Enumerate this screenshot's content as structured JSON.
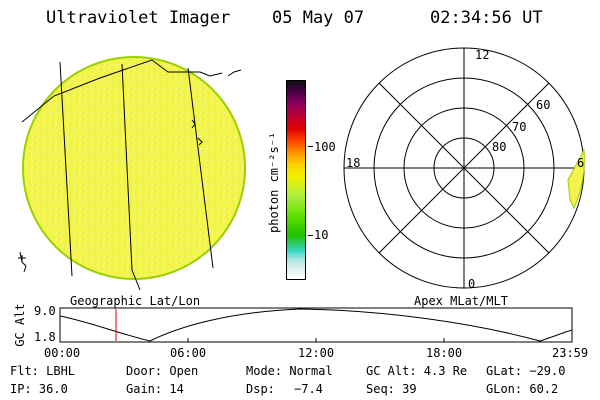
{
  "header": {
    "title": "Ultraviolet Imager",
    "date": "05 May 07",
    "time": "02:34:56 UT"
  },
  "colorbar": {
    "unit_label": "photon cm⁻²s⁻¹",
    "ticks": [
      "100",
      "10"
    ],
    "colors": [
      "#ffffff",
      "#d9f0ee",
      "#a8e6e0",
      "#3ad6c8",
      "#20c000",
      "#60e000",
      "#b0f040",
      "#f0f000",
      "#ffd000",
      "#ff9000",
      "#ff4000",
      "#e00000",
      "#b00040",
      "#800060",
      "#400040",
      "#101010"
    ]
  },
  "geo_panel": {
    "caption": "Geographic Lat/Lon",
    "fill_color": "#f2f44a"
  },
  "polar_panel": {
    "caption": "Apex MLat/MLT",
    "lat_labels": [
      "80",
      "70",
      "60"
    ],
    "mlt_labels": {
      "top": "12",
      "left": "18",
      "right": "6",
      "bottom": "0"
    }
  },
  "altitude_plot": {
    "ylabel": "GC Alt",
    "yticks": [
      "9.0",
      "1.8"
    ],
    "xticks": [
      "00:00",
      "06:00",
      "12:00",
      "18:00",
      "23:59"
    ],
    "marker_color": "#dd0000"
  },
  "info": {
    "flt": "Flt: LBHL",
    "door": "Door: Open",
    "mode": "Mode: Normal",
    "gc_alt": "GC Alt: 4.3 Re",
    "glat": "GLat: −29.0",
    "ip": "IP: 36.0",
    "gain": "Gain: 14",
    "dsp_label": "Dsp:",
    "dsp_value": "−7.4",
    "seq": "Seq: 39",
    "glon": "GLon:  60.2"
  }
}
